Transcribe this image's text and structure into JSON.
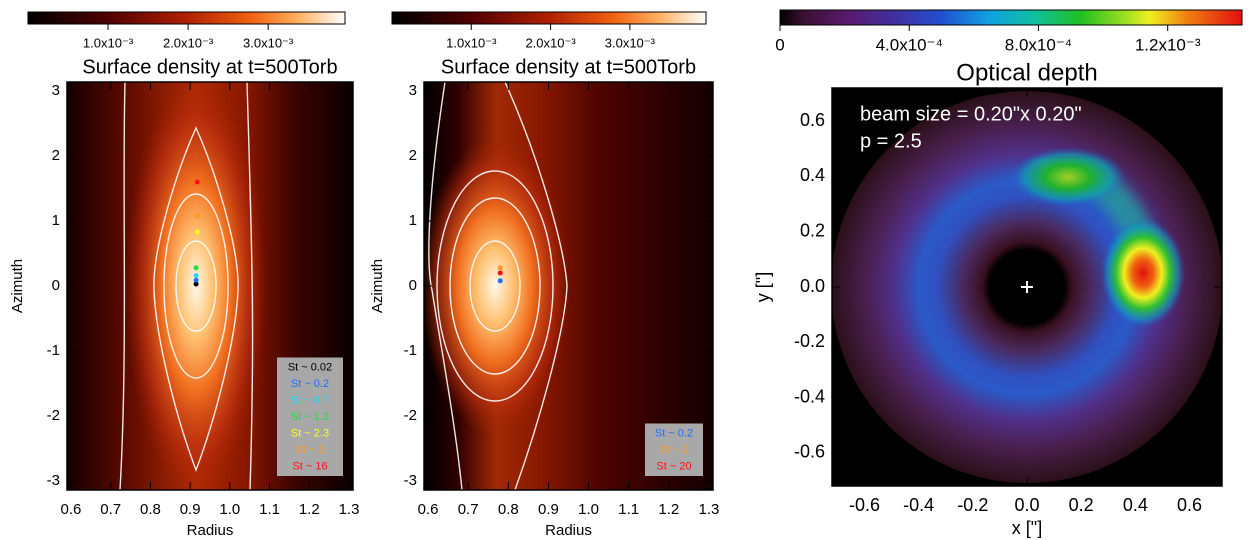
{
  "chart_data": [
    {
      "type": "scatter",
      "title": "Surface density at t=500Torb",
      "x_label": "Radius",
      "y_label": "Azimuth",
      "xlim": [
        0.59,
        1.31
      ],
      "xticks": [
        0.6,
        0.7,
        0.8,
        0.9,
        {
          "value": 1,
          "label": "1.0"
        },
        1.1,
        1.2,
        1.3
      ],
      "ylim": [
        -3.14,
        3.14
      ],
      "yticks": [
        -3,
        -2,
        -1,
        0,
        1,
        2,
        3
      ],
      "colorbar": {
        "lim": [
          0,
          0.00396
        ],
        "ticks": [
          {
            "value": 0.001,
            "label": "1.0x10⁻³"
          },
          {
            "value": 0.002,
            "label": "2.0x10⁻³"
          },
          {
            "value": 0.003,
            "label": "3.0x10⁻³"
          }
        ]
      },
      "legend": "lower right",
      "series": [
        {
          "name": "St ~ 0.02",
          "color": "#000000",
          "x": [
            0.915
          ],
          "y": [
            0.03
          ]
        },
        {
          "name": "St ~ 0.2",
          "color": "#1f6fff",
          "x": [
            0.915
          ],
          "y": [
            0.09
          ]
        },
        {
          "name": "St ~ 0.7",
          "color": "#20d8ff",
          "x": [
            0.915
          ],
          "y": [
            0.16
          ]
        },
        {
          "name": "St ~ 1.2",
          "color": "#20e040",
          "x": [
            0.915
          ],
          "y": [
            0.28
          ]
        },
        {
          "name": "St ~ 2.3",
          "color": "#ffff20",
          "x": [
            0.918
          ],
          "y": [
            0.83
          ]
        },
        {
          "name": "St ~ 3",
          "color": "#ff9a20",
          "x": [
            0.918
          ],
          "y": [
            1.08
          ]
        },
        {
          "name": "St ~ 16",
          "color": "#ff1010",
          "x": [
            0.918
          ],
          "y": [
            1.6
          ]
        }
      ]
    },
    {
      "type": "scatter",
      "title": "Surface density at t=500Torb",
      "x_label": "Radius",
      "y_label": "Azimuth",
      "xlim": [
        0.59,
        1.31
      ],
      "xticks": [
        0.6,
        0.7,
        0.8,
        0.9,
        {
          "value": 1,
          "label": "1.0"
        },
        1.1,
        1.2,
        1.3
      ],
      "ylim": [
        -3.14,
        3.14
      ],
      "yticks": [
        -3,
        -2,
        -1,
        0,
        1,
        2,
        3
      ],
      "colorbar": {
        "lim": [
          0,
          0.00396
        ],
        "ticks": [
          {
            "value": 0.001,
            "label": "1.0x10⁻³"
          },
          {
            "value": 0.002,
            "label": "2.0x10⁻³"
          },
          {
            "value": 0.003,
            "label": "3.0x10⁻³"
          }
        ]
      },
      "legend": "lower right",
      "series": [
        {
          "name": "St ~ 0.2",
          "color": "#1f6fff",
          "x": [
            0.78
          ],
          "y": [
            0.08
          ]
        },
        {
          "name": "St ~ 2",
          "color": "#ff9a20",
          "x": [
            0.78
          ],
          "y": [
            0.28
          ]
        },
        {
          "name": "St ~ 20",
          "color": "#ff1010",
          "x": [
            0.78
          ],
          "y": [
            0.2
          ]
        }
      ]
    },
    {
      "type": "image",
      "title": "Optical depth",
      "x_label": "x [\"]",
      "y_label": "y [\"]",
      "xlim": [
        -0.72,
        0.72
      ],
      "xticks": [
        -0.6,
        -0.4,
        -0.2,
        {
          "value": 0,
          "label": "0.0"
        },
        0.2,
        0.4,
        0.6
      ],
      "ylim": [
        -0.72,
        0.72
      ],
      "yticks": [
        -0.6,
        -0.4,
        -0.2,
        {
          "value": 0,
          "label": "0.0"
        },
        0.2,
        0.4,
        0.6
      ],
      "colorbar": {
        "lim": [
          0,
          0.00143
        ],
        "ticks": [
          0,
          {
            "value": 0.0004,
            "label": "4.0x10⁻⁴"
          },
          {
            "value": 0.0008,
            "label": "8.0x10⁻⁴"
          },
          {
            "value": 0.0012,
            "label": "1.2x10⁻³"
          }
        ]
      },
      "annotations": [
        "beam size = 0.20\"x 0.20\"",
        "p = 2.5"
      ]
    }
  ]
}
